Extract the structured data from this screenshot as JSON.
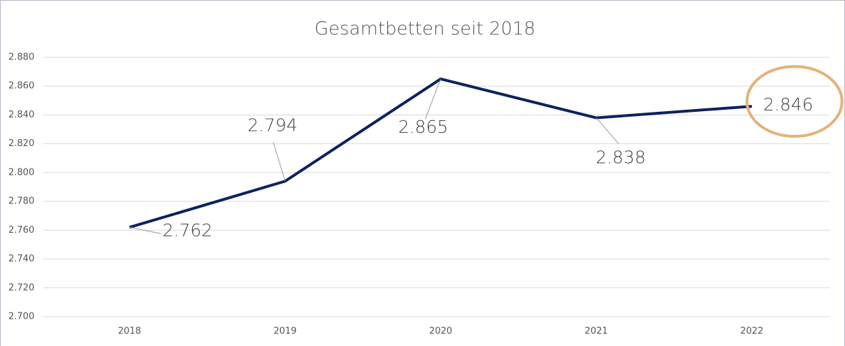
{
  "chart_data": {
    "type": "line",
    "title": "Gesamtbetten seit 2018",
    "categories": [
      "2018",
      "2019",
      "2020",
      "2021",
      "2022"
    ],
    "series": [
      {
        "name": "Gesamtbetten",
        "color": "#0d2260",
        "values": [
          2762,
          2794,
          2865,
          2838,
          2846
        ],
        "value_labels": [
          "2.762",
          "2.794",
          "2.865",
          "2.838",
          "2.846"
        ]
      }
    ],
    "ylim": [
      2700,
      2880
    ],
    "yticks": [
      {
        "value": 2700,
        "label": "2.700"
      },
      {
        "value": 2720,
        "label": "2.720"
      },
      {
        "value": 2740,
        "label": "2.740"
      },
      {
        "value": 2760,
        "label": "2.760"
      },
      {
        "value": 2780,
        "label": "2.780"
      },
      {
        "value": 2800,
        "label": "2.800"
      },
      {
        "value": 2820,
        "label": "2.820"
      },
      {
        "value": 2840,
        "label": "2.840"
      },
      {
        "value": 2860,
        "label": "2.860"
      },
      {
        "value": 2880,
        "label": "2.880"
      }
    ],
    "grid": true
  }
}
